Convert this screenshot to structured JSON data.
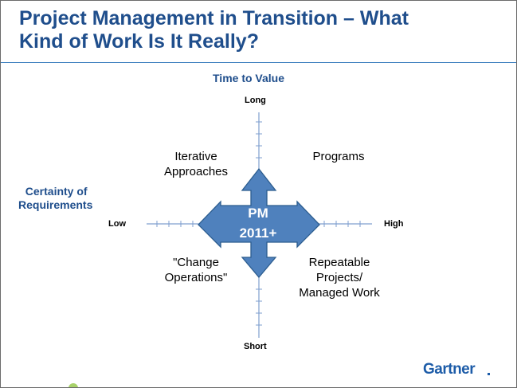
{
  "slide": {
    "title_line1": "Project Management in Transition – What",
    "title_line2": "Kind of Work Is It Really?"
  },
  "diagram": {
    "vertical_axis_title": "Time to Value",
    "vertical_top": "Long",
    "vertical_bottom": "Short",
    "horizontal_axis_title_line1": "Certainty of",
    "horizontal_axis_title_line2": "Requirements",
    "horizontal_left": "Low",
    "horizontal_right": "High",
    "center_line1": "PM",
    "center_line2": "2011+",
    "quadrants": {
      "top_left_line1": "Iterative",
      "top_left_line2": "Approaches",
      "top_right": "Programs",
      "bottom_left_line1": "\"Change",
      "bottom_left_line2": "Operations\"",
      "bottom_right_line1": "Repeatable",
      "bottom_right_line2": "Projects/",
      "bottom_right_line3": "Managed Work"
    },
    "colors": {
      "arrow_fill": "#4f81bd",
      "arrow_stroke": "#2c5d8f",
      "axis": "#7f9fcf",
      "title": "#1f4e8c"
    }
  },
  "footer": {
    "logo_text": "Gartner"
  }
}
